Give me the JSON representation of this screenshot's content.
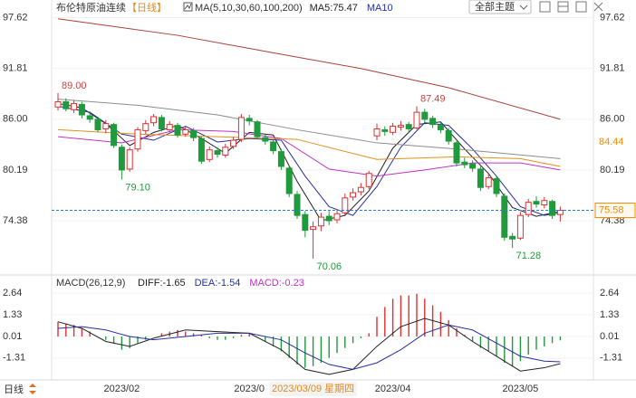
{
  "ui": {
    "theme_button": "全部主题",
    "period_tab": "日线"
  },
  "chart_data": [
    {
      "type": "candlestick",
      "title": "布伦特原油连续",
      "period": "【日线】",
      "indicator_label": "MA(5,10,30,60,100,200)",
      "open": [
        87.4,
        88.0,
        87.1,
        87.7,
        86.4,
        86.0,
        84.9,
        85.4,
        82.8,
        80.3,
        82.6,
        84.7,
        85.6,
        86.2,
        84.8,
        85.3,
        84.3,
        84.7,
        83.8,
        81.4,
        82.4,
        81.9,
        82.9,
        83.7,
        86.1,
        85.7,
        83.9,
        83.4,
        82.3,
        80.4,
        77.4,
        75.1,
        73.4,
        73.8,
        74.9,
        74.5,
        75.3,
        77.1,
        77.7,
        78.3,
        84.1,
        84.8,
        84.5,
        85.1,
        85.4,
        85.0,
        86.8,
        86.1,
        85.3,
        84.7,
        83.3,
        81.1,
        80.9,
        80.3,
        78.3,
        79.2,
        77.2,
        72.6,
        72.4,
        75.1,
        76.6,
        76.2,
        76.6,
        75.1
      ],
      "high": [
        89.0,
        88.4,
        88.2,
        88.0,
        86.9,
        86.3,
        85.9,
        85.6,
        83.1,
        82.8,
        85.1,
        85.9,
        86.6,
        86.5,
        85.8,
        85.6,
        85.2,
        85.0,
        84.0,
        82.9,
        82.8,
        83.2,
        84.0,
        86.6,
        86.5,
        85.9,
        84.3,
        83.7,
        82.6,
        80.7,
        77.8,
        75.5,
        74.3,
        75.3,
        75.5,
        75.7,
        77.5,
        78.1,
        78.7,
        80.1,
        85.5,
        85.2,
        85.6,
        85.8,
        85.7,
        87.49,
        87.2,
        86.4,
        85.6,
        85.0,
        83.5,
        81.6,
        81.3,
        80.6,
        79.8,
        79.5,
        77.5,
        73.0,
        75.4,
        76.9,
        77.2,
        77.1,
        76.8,
        76.0
      ],
      "low": [
        87.0,
        86.9,
        86.7,
        86.1,
        85.6,
        84.5,
        84.4,
        82.7,
        79.1,
        80.0,
        82.3,
        84.3,
        85.2,
        84.6,
        84.5,
        83.9,
        84.0,
        83.5,
        80.9,
        81.1,
        81.6,
        81.6,
        82.6,
        83.4,
        85.3,
        83.7,
        83.1,
        82.0,
        80.2,
        77.1,
        74.6,
        72.5,
        70.06,
        73.2,
        73.9,
        74.1,
        75.0,
        76.7,
        77.3,
        78.0,
        83.6,
        84.1,
        84.2,
        84.7,
        84.4,
        84.8,
        85.6,
        85.0,
        84.4,
        83.1,
        80.6,
        80.4,
        80.0,
        77.8,
        78.0,
        77.1,
        72.1,
        71.28,
        72.2,
        74.8,
        75.9,
        75.8,
        74.6,
        74.3
      ],
      "close": [
        88.0,
        87.2,
        87.8,
        86.5,
        86.0,
        84.8,
        85.5,
        83.0,
        80.2,
        82.5,
        84.8,
        85.5,
        86.3,
        84.9,
        85.4,
        84.2,
        84.8,
        83.9,
        81.2,
        82.5,
        82.0,
        82.8,
        83.6,
        86.2,
        85.8,
        84.0,
        83.5,
        82.4,
        80.6,
        77.5,
        75.0,
        73.3,
        73.7,
        74.8,
        74.4,
        75.2,
        77.0,
        77.6,
        78.2,
        79.8,
        84.9,
        84.6,
        85.2,
        85.3,
        84.9,
        86.8,
        86.0,
        85.4,
        84.8,
        83.5,
        81.0,
        80.8,
        80.4,
        78.2,
        79.3,
        77.5,
        72.5,
        72.3,
        75.0,
        76.5,
        76.3,
        76.7,
        75.0,
        75.58
      ],
      "up_color": "#e03030",
      "down_color": "#1f9a3c",
      "ylim": [
        68.6,
        98.4
      ],
      "yticks": [
        97.62,
        91.81,
        {
          "value": 86,
          "label": "86.00"
        },
        80.19,
        74.38
      ],
      "series": [
        {
          "name": "MA5:75.47",
          "color": "#222222",
          "x": [
            0,
            3,
            6,
            9,
            12,
            15,
            18,
            21,
            24,
            27,
            30,
            33,
            36,
            39,
            42,
            45,
            48,
            51,
            54,
            57,
            60,
            63
          ],
          "values": [
            87.8,
            87.3,
            85.5,
            83.0,
            84.5,
            85.3,
            83.8,
            82.1,
            84.5,
            84.2,
            78.9,
            74.4,
            75.0,
            77.8,
            82.7,
            85.4,
            85.7,
            82.6,
            79.8,
            75.9,
            74.9,
            75.47
          ]
        },
        {
          "name": "MA10",
          "color": "#2530a0",
          "x": [
            0,
            4,
            8,
            12,
            16,
            20,
            24,
            28,
            31,
            34,
            37,
            40,
            43,
            46,
            49,
            52,
            55,
            58,
            61,
            63
          ],
          "values": [
            87.5,
            86.8,
            84.3,
            83.6,
            85.2,
            83.4,
            83.8,
            83.6,
            79.5,
            76.0,
            75.0,
            78.3,
            82.8,
            85.6,
            85.3,
            82.6,
            79.5,
            76.0,
            75.0,
            75.3
          ]
        },
        {
          "color": "#c230c8",
          "x": [
            0,
            8,
            15,
            22,
            28,
            34,
            40,
            46,
            52,
            58,
            63
          ],
          "values": [
            84.0,
            83.3,
            84.8,
            84.6,
            83.8,
            80.3,
            79.5,
            80.2,
            81.0,
            81.0,
            80.2
          ]
        },
        {
          "color": "#e0901e",
          "x": [
            0,
            10,
            20,
            30,
            40,
            50,
            58,
            63
          ],
          "values": [
            84.8,
            84.3,
            84.0,
            83.7,
            81.4,
            81.7,
            81.5,
            80.6
          ]
        },
        {
          "color": "#8c8c8c",
          "x": [
            0,
            10,
            20,
            30,
            40,
            50,
            63
          ],
          "values": [
            88.3,
            87.6,
            86.5,
            84.8,
            83.3,
            82.6,
            81.5
          ]
        },
        {
          "color": "#a8403a",
          "x": [
            0,
            15,
            27,
            38,
            49,
            63
          ],
          "values": [
            97.5,
            95.6,
            93.6,
            91.8,
            89.6,
            86.0
          ]
        }
      ],
      "annotations": [
        {
          "label": "89.00",
          "value": 89.0,
          "x": 0,
          "color": "#d04040"
        },
        {
          "label": "79.10",
          "value": 79.1,
          "x": 8,
          "color": "#1f9a3c"
        },
        {
          "label": "70.06",
          "value": 70.06,
          "x": 32,
          "color": "#1f9a3c"
        },
        {
          "label": "87.49",
          "value": 87.49,
          "x": 45,
          "color": "#d04040"
        },
        {
          "label": "71.28",
          "value": 71.28,
          "x": 57,
          "color": "#1f9a3c"
        }
      ],
      "side_label": {
        "value": 84.44,
        "color": "#f08c00"
      },
      "last_price": {
        "value": 75.58,
        "color": "#f08c00"
      }
    },
    {
      "type": "macd",
      "title": "MACD(26,12,9)",
      "categories": [
        null,
        null,
        null,
        null,
        null,
        null,
        null,
        null,
        "2023/02",
        null,
        null,
        null,
        null,
        null,
        null,
        null,
        null,
        null,
        null,
        null,
        null,
        null,
        null,
        null,
        "2023/0",
        null,
        null,
        null,
        null,
        null,
        null,
        null,
        null,
        null,
        null,
        null,
        null,
        null,
        null,
        null,
        null,
        null,
        "2023/04",
        null,
        null,
        null,
        null,
        null,
        null,
        null,
        null,
        null,
        null,
        null,
        null,
        null,
        null,
        null,
        "2023/05",
        null,
        null,
        null,
        null,
        null
      ],
      "cursor": {
        "x": 32,
        "label": "2023/03/09 星期四"
      },
      "histogram": {
        "name": "MACD:-0.23",
        "color": "#c230c8",
        "up_color": "#e03030",
        "down_color": "#1f9a3c",
        "values": [
          0.9,
          0.8,
          0.7,
          0.5,
          0.3,
          0.0,
          -0.2,
          -0.4,
          -0.8,
          -0.7,
          -0.4,
          -0.2,
          0.0,
          0.2,
          0.3,
          0.4,
          0.3,
          0.2,
          0.1,
          -0.1,
          -0.2,
          -0.2,
          -0.1,
          0.1,
          0.2,
          0.0,
          -0.3,
          -0.6,
          -0.9,
          -1.3,
          -1.7,
          -1.9,
          -1.8,
          -1.6,
          -1.3,
          -1.0,
          -0.7,
          -0.4,
          -0.1,
          0.2,
          1.2,
          1.8,
          2.3,
          2.5,
          2.5,
          2.6,
          2.3,
          1.9,
          1.5,
          1.0,
          0.5,
          0.1,
          -0.3,
          -0.7,
          -0.9,
          -1.2,
          -1.6,
          -1.8,
          -1.5,
          -1.1,
          -0.8,
          -0.6,
          -0.4,
          -0.23
        ]
      },
      "series": [
        {
          "name": "DIFF:-1.65",
          "color": "#222222",
          "x": [
            0,
            3,
            6,
            9,
            12,
            16,
            20,
            24,
            28,
            31,
            34,
            37,
            40,
            43,
            46,
            49,
            52,
            55,
            58,
            61,
            63
          ],
          "values": [
            0.9,
            0.5,
            -0.3,
            -0.6,
            -0.1,
            0.4,
            0.3,
            0.2,
            -0.8,
            -2.0,
            -2.3,
            -2.0,
            -0.6,
            0.6,
            1.1,
            0.7,
            -0.3,
            -1.2,
            -2.1,
            -1.9,
            -1.65
          ]
        },
        {
          "name": "DEA:-1.54",
          "color": "#2530a0",
          "x": [
            0,
            3,
            6,
            9,
            12,
            16,
            20,
            24,
            28,
            31,
            34,
            37,
            40,
            43,
            46,
            49,
            52,
            55,
            58,
            61,
            63
          ],
          "values": [
            0.5,
            0.6,
            0.4,
            0.0,
            -0.2,
            0.0,
            0.2,
            0.2,
            -0.2,
            -1.0,
            -1.7,
            -2.0,
            -1.6,
            -0.8,
            0.2,
            0.7,
            0.4,
            -0.4,
            -1.2,
            -1.5,
            -1.54
          ]
        }
      ],
      "ylim": [
        -2.64,
        3.14
      ],
      "yticks": [
        2.64,
        1.33,
        0.01,
        -1.31
      ]
    }
  ]
}
